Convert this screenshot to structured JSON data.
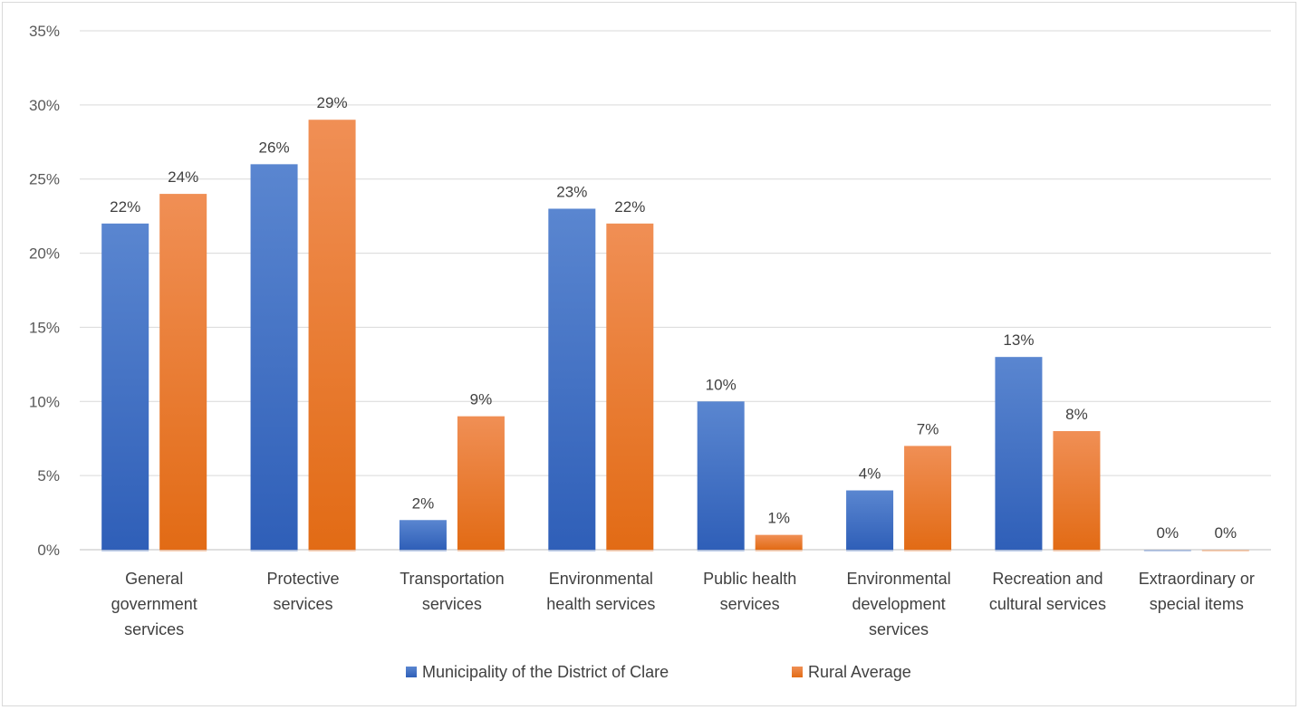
{
  "chart_data": {
    "type": "bar",
    "title": "",
    "xlabel": "",
    "ylabel": "",
    "ylim": [
      0,
      35
    ],
    "y_tick_step": 5,
    "y_tick_format": "percent",
    "grid": true,
    "legend_position": "bottom",
    "categories": [
      "General government services",
      "Protective services",
      "Transportation services",
      "Environmental health services",
      "Public health services",
      "Environmental development services",
      "Recreation and cultural services",
      "Extraordinary or special items"
    ],
    "category_lines": [
      [
        "General",
        "government",
        "services"
      ],
      [
        "Protective",
        "services"
      ],
      [
        "Transportation",
        "services"
      ],
      [
        "Environmental",
        "health services"
      ],
      [
        "Public health",
        "services"
      ],
      [
        "Environmental",
        "development",
        "services"
      ],
      [
        "Recreation and",
        "cultural services"
      ],
      [
        "Extraordinary or",
        "special items"
      ]
    ],
    "series": [
      {
        "name": "Municipality of the District of Clare",
        "color": "#4472c4",
        "values": [
          22,
          26,
          2,
          23,
          10,
          4,
          13,
          0
        ],
        "labels": [
          "22%",
          "26%",
          "2%",
          "23%",
          "10%",
          "4%",
          "13%",
          "0%"
        ]
      },
      {
        "name": "Rural Average",
        "color": "#ed7d31",
        "values": [
          24,
          29,
          9,
          22,
          1,
          7,
          8,
          0
        ],
        "labels": [
          "24%",
          "29%",
          "9%",
          "22%",
          "1%",
          "7%",
          "8%",
          "0%"
        ]
      }
    ],
    "y_tick_labels": [
      "0%",
      "5%",
      "10%",
      "15%",
      "20%",
      "25%",
      "30%",
      "35%"
    ]
  }
}
